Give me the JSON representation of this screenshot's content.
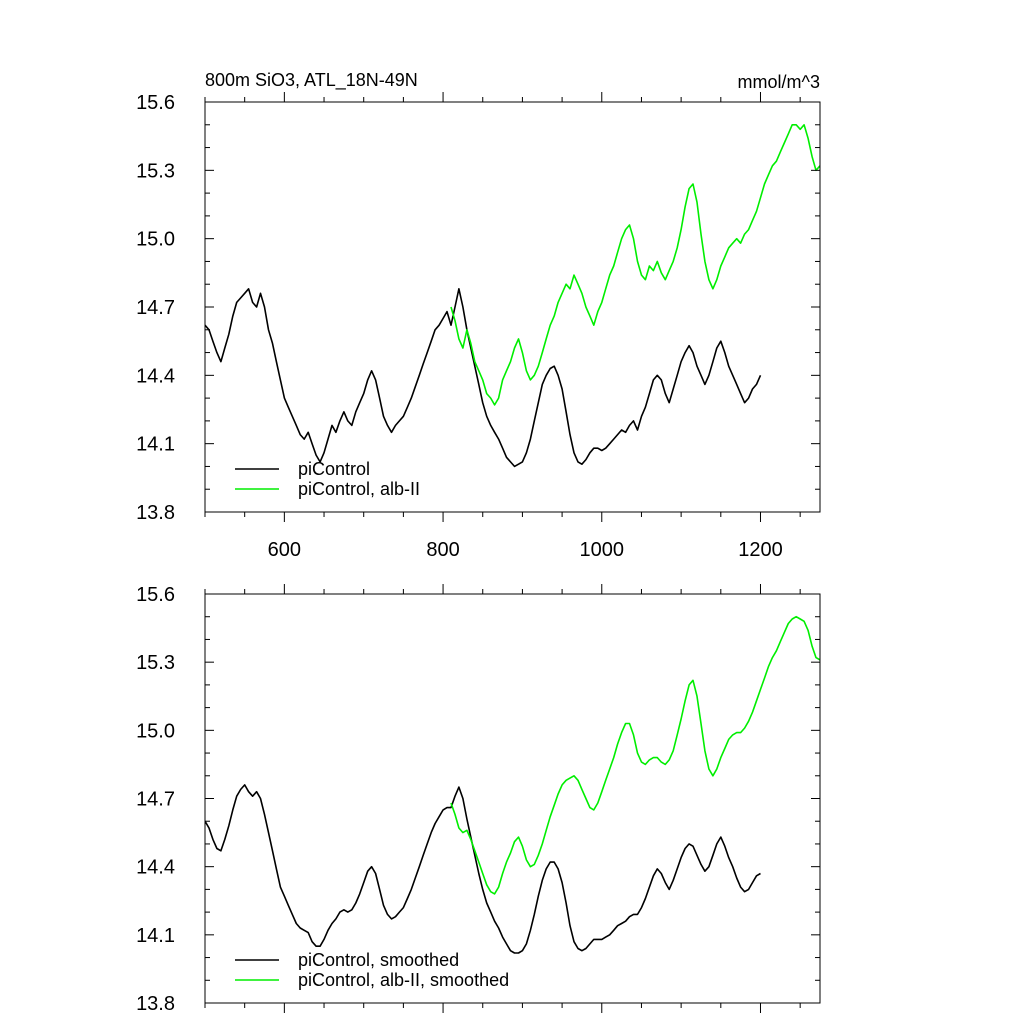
{
  "chart_data": [
    {
      "type": "line",
      "title": "800m SiO3, ATL_18N-49N",
      "units": "mmol/m^3",
      "xlabel": "",
      "ylabel": "",
      "xlim": [
        500,
        1275
      ],
      "ylim": [
        13.8,
        15.6
      ],
      "xticks": [
        600,
        800,
        1000,
        1200
      ],
      "yticks": [
        13.8,
        14.1,
        14.4,
        14.7,
        15.0,
        15.3,
        15.6
      ],
      "show_x_tick_labels": true,
      "grid": false,
      "legend_position": "bottom-left",
      "series": [
        {
          "name": "piControl",
          "color": "#000000",
          "x": [
            500,
            505,
            510,
            515,
            520,
            525,
            530,
            535,
            540,
            545,
            550,
            555,
            560,
            565,
            570,
            575,
            580,
            585,
            590,
            595,
            600,
            605,
            610,
            615,
            620,
            625,
            630,
            635,
            640,
            645,
            650,
            655,
            660,
            665,
            670,
            675,
            680,
            685,
            690,
            695,
            700,
            705,
            710,
            715,
            720,
            725,
            730,
            735,
            740,
            745,
            750,
            755,
            760,
            765,
            770,
            775,
            780,
            785,
            790,
            795,
            800,
            805,
            810,
            815,
            820,
            825,
            830,
            835,
            840,
            845,
            850,
            855,
            860,
            865,
            870,
            875,
            880,
            885,
            890,
            895,
            900,
            905,
            910,
            915,
            920,
            925,
            930,
            935,
            940,
            945,
            950,
            955,
            960,
            965,
            970,
            975,
            980,
            985,
            990,
            995,
            1000,
            1005,
            1010,
            1015,
            1020,
            1025,
            1030,
            1035,
            1040,
            1045,
            1050,
            1055,
            1060,
            1065,
            1070,
            1075,
            1080,
            1085,
            1090,
            1095,
            1100,
            1105,
            1110,
            1115,
            1120,
            1125,
            1130,
            1135,
            1140,
            1145,
            1150,
            1155,
            1160,
            1165,
            1170,
            1175,
            1180,
            1185,
            1190,
            1195,
            1200
          ],
          "y": [
            14.62,
            14.6,
            14.55,
            14.5,
            14.46,
            14.52,
            14.58,
            14.66,
            14.72,
            14.74,
            14.76,
            14.78,
            14.72,
            14.7,
            14.76,
            14.7,
            14.6,
            14.54,
            14.46,
            14.38,
            14.3,
            14.26,
            14.22,
            14.18,
            14.14,
            14.12,
            14.15,
            14.1,
            14.05,
            14.02,
            14.06,
            14.12,
            14.18,
            14.15,
            14.2,
            14.24,
            14.2,
            14.18,
            14.24,
            14.28,
            14.32,
            14.38,
            14.42,
            14.38,
            14.3,
            14.22,
            14.18,
            14.15,
            14.18,
            14.2,
            14.22,
            14.26,
            14.3,
            14.35,
            14.4,
            14.45,
            14.5,
            14.55,
            14.6,
            14.62,
            14.65,
            14.68,
            14.62,
            14.7,
            14.78,
            14.7,
            14.6,
            14.52,
            14.44,
            14.36,
            14.28,
            14.22,
            14.18,
            14.15,
            14.12,
            14.08,
            14.04,
            14.02,
            14.0,
            14.01,
            14.02,
            14.06,
            14.12,
            14.2,
            14.28,
            14.36,
            14.4,
            14.43,
            14.44,
            14.4,
            14.34,
            14.24,
            14.14,
            14.06,
            14.02,
            14.01,
            14.03,
            14.06,
            14.08,
            14.08,
            14.07,
            14.08,
            14.1,
            14.12,
            14.14,
            14.16,
            14.15,
            14.18,
            14.2,
            14.16,
            14.22,
            14.26,
            14.32,
            14.38,
            14.4,
            14.38,
            14.32,
            14.28,
            14.34,
            14.4,
            14.46,
            14.5,
            14.53,
            14.5,
            14.44,
            14.4,
            14.36,
            14.4,
            14.46,
            14.52,
            14.55,
            14.5,
            14.44,
            14.4,
            14.36,
            14.32,
            14.28,
            14.3,
            14.34,
            14.36,
            14.4
          ]
        },
        {
          "name": "piControl, alb-II",
          "color": "#00ee00",
          "x": [
            810,
            815,
            820,
            825,
            830,
            835,
            840,
            845,
            850,
            855,
            860,
            865,
            870,
            875,
            880,
            885,
            890,
            895,
            900,
            905,
            910,
            915,
            920,
            925,
            930,
            935,
            940,
            945,
            950,
            955,
            960,
            965,
            970,
            975,
            980,
            985,
            990,
            995,
            1000,
            1005,
            1010,
            1015,
            1020,
            1025,
            1030,
            1035,
            1040,
            1045,
            1050,
            1055,
            1060,
            1065,
            1070,
            1075,
            1080,
            1085,
            1090,
            1095,
            1100,
            1105,
            1110,
            1115,
            1120,
            1125,
            1130,
            1135,
            1140,
            1145,
            1150,
            1155,
            1160,
            1165,
            1170,
            1175,
            1180,
            1185,
            1190,
            1195,
            1200,
            1205,
            1210,
            1215,
            1220,
            1225,
            1230,
            1235,
            1240,
            1245,
            1250,
            1255,
            1260,
            1265,
            1270,
            1275
          ],
          "y": [
            14.7,
            14.64,
            14.56,
            14.52,
            14.6,
            14.54,
            14.46,
            14.42,
            14.38,
            14.32,
            14.3,
            14.27,
            14.3,
            14.38,
            14.42,
            14.46,
            14.52,
            14.56,
            14.5,
            14.42,
            14.38,
            14.4,
            14.44,
            14.5,
            14.56,
            14.62,
            14.66,
            14.72,
            14.76,
            14.8,
            14.78,
            14.84,
            14.8,
            14.76,
            14.7,
            14.66,
            14.62,
            14.68,
            14.72,
            14.78,
            14.84,
            14.88,
            14.94,
            15.0,
            15.04,
            15.06,
            15.0,
            14.9,
            14.84,
            14.82,
            14.88,
            14.86,
            14.9,
            14.85,
            14.82,
            14.86,
            14.9,
            14.96,
            15.04,
            15.14,
            15.22,
            15.24,
            15.16,
            15.02,
            14.9,
            14.82,
            14.78,
            14.82,
            14.88,
            14.92,
            14.96,
            14.98,
            15.0,
            14.98,
            15.02,
            15.04,
            15.08,
            15.12,
            15.18,
            15.24,
            15.28,
            15.32,
            15.34,
            15.38,
            15.42,
            15.46,
            15.5,
            15.5,
            15.48,
            15.5,
            15.44,
            15.36,
            15.3,
            15.32
          ]
        }
      ]
    },
    {
      "type": "line",
      "title": "",
      "units": "",
      "xlabel": "",
      "ylabel": "",
      "xlim": [
        500,
        1275
      ],
      "ylim": [
        13.8,
        15.6
      ],
      "xticks": [
        600,
        800,
        1000,
        1200
      ],
      "yticks": [
        13.8,
        14.1,
        14.4,
        14.7,
        15.0,
        15.3,
        15.6
      ],
      "show_x_tick_labels": false,
      "grid": false,
      "legend_position": "bottom-left",
      "series": [
        {
          "name": "piControl, smoothed",
          "color": "#000000",
          "x": [
            500,
            505,
            510,
            515,
            520,
            525,
            530,
            535,
            540,
            545,
            550,
            555,
            560,
            565,
            570,
            575,
            580,
            585,
            590,
            595,
            600,
            605,
            610,
            615,
            620,
            625,
            630,
            635,
            640,
            645,
            650,
            655,
            660,
            665,
            670,
            675,
            680,
            685,
            690,
            695,
            700,
            705,
            710,
            715,
            720,
            725,
            730,
            735,
            740,
            745,
            750,
            755,
            760,
            765,
            770,
            775,
            780,
            785,
            790,
            795,
            800,
            805,
            810,
            815,
            820,
            825,
            830,
            835,
            840,
            845,
            850,
            855,
            860,
            865,
            870,
            875,
            880,
            885,
            890,
            895,
            900,
            905,
            910,
            915,
            920,
            925,
            930,
            935,
            940,
            945,
            950,
            955,
            960,
            965,
            970,
            975,
            980,
            985,
            990,
            995,
            1000,
            1005,
            1010,
            1015,
            1020,
            1025,
            1030,
            1035,
            1040,
            1045,
            1050,
            1055,
            1060,
            1065,
            1070,
            1075,
            1080,
            1085,
            1090,
            1095,
            1100,
            1105,
            1110,
            1115,
            1120,
            1125,
            1130,
            1135,
            1140,
            1145,
            1150,
            1155,
            1160,
            1165,
            1170,
            1175,
            1180,
            1185,
            1190,
            1195,
            1200
          ],
          "y": [
            14.6,
            14.57,
            14.52,
            14.48,
            14.47,
            14.52,
            14.58,
            14.65,
            14.71,
            14.74,
            14.76,
            14.73,
            14.71,
            14.73,
            14.7,
            14.63,
            14.55,
            14.47,
            14.39,
            14.31,
            14.27,
            14.23,
            14.19,
            14.15,
            14.13,
            14.12,
            14.11,
            14.07,
            14.05,
            14.05,
            14.08,
            14.12,
            14.15,
            14.17,
            14.2,
            14.21,
            14.2,
            14.21,
            14.24,
            14.28,
            14.33,
            14.38,
            14.4,
            14.37,
            14.3,
            14.23,
            14.19,
            14.17,
            14.18,
            14.2,
            14.22,
            14.26,
            14.3,
            14.35,
            14.4,
            14.45,
            14.5,
            14.55,
            14.59,
            14.62,
            14.65,
            14.66,
            14.66,
            14.71,
            14.75,
            14.7,
            14.61,
            14.53,
            14.45,
            14.37,
            14.3,
            14.24,
            14.2,
            14.16,
            14.13,
            14.09,
            14.06,
            14.03,
            14.02,
            14.02,
            14.03,
            14.06,
            14.12,
            14.19,
            14.27,
            14.34,
            14.39,
            14.42,
            14.42,
            14.39,
            14.33,
            14.24,
            14.14,
            14.07,
            14.04,
            14.03,
            14.04,
            14.06,
            14.08,
            14.08,
            14.08,
            14.09,
            14.1,
            14.12,
            14.14,
            14.15,
            14.16,
            14.18,
            14.19,
            14.19,
            14.22,
            14.26,
            14.31,
            14.36,
            14.39,
            14.37,
            14.33,
            14.3,
            14.34,
            14.39,
            14.44,
            14.48,
            14.5,
            14.49,
            14.45,
            14.41,
            14.38,
            14.4,
            14.45,
            14.5,
            14.53,
            14.49,
            14.44,
            14.4,
            14.35,
            14.31,
            14.29,
            14.3,
            14.33,
            14.36,
            14.37
          ]
        },
        {
          "name": "piControl, alb-II, smoothed",
          "color": "#00ee00",
          "x": [
            810,
            815,
            820,
            825,
            830,
            835,
            840,
            845,
            850,
            855,
            860,
            865,
            870,
            875,
            880,
            885,
            890,
            895,
            900,
            905,
            910,
            915,
            920,
            925,
            930,
            935,
            940,
            945,
            950,
            955,
            960,
            965,
            970,
            975,
            980,
            985,
            990,
            995,
            1000,
            1005,
            1010,
            1015,
            1020,
            1025,
            1030,
            1035,
            1040,
            1045,
            1050,
            1055,
            1060,
            1065,
            1070,
            1075,
            1080,
            1085,
            1090,
            1095,
            1100,
            1105,
            1110,
            1115,
            1120,
            1125,
            1130,
            1135,
            1140,
            1145,
            1150,
            1155,
            1160,
            1165,
            1170,
            1175,
            1180,
            1185,
            1190,
            1195,
            1200,
            1205,
            1210,
            1215,
            1220,
            1225,
            1230,
            1235,
            1240,
            1245,
            1250,
            1255,
            1260,
            1265,
            1270,
            1275
          ],
          "y": [
            14.68,
            14.63,
            14.57,
            14.55,
            14.56,
            14.52,
            14.47,
            14.42,
            14.37,
            14.32,
            14.29,
            14.28,
            14.31,
            14.37,
            14.42,
            14.46,
            14.51,
            14.53,
            14.49,
            14.43,
            14.4,
            14.41,
            14.45,
            14.5,
            14.56,
            14.62,
            14.67,
            14.72,
            14.76,
            14.78,
            14.79,
            14.8,
            14.78,
            14.74,
            14.7,
            14.66,
            14.65,
            14.68,
            14.73,
            14.78,
            14.83,
            14.88,
            14.94,
            14.99,
            15.03,
            15.03,
            14.98,
            14.9,
            14.86,
            14.85,
            14.87,
            14.88,
            14.88,
            14.86,
            14.85,
            14.87,
            14.91,
            14.98,
            15.05,
            15.13,
            15.2,
            15.22,
            15.15,
            15.03,
            14.91,
            14.83,
            14.8,
            14.83,
            14.88,
            14.92,
            14.96,
            14.98,
            14.99,
            14.99,
            15.01,
            15.04,
            15.08,
            15.13,
            15.18,
            15.23,
            15.28,
            15.32,
            15.35,
            15.39,
            15.43,
            15.47,
            15.49,
            15.5,
            15.49,
            15.48,
            15.44,
            15.37,
            15.32,
            15.31
          ]
        }
      ]
    }
  ]
}
